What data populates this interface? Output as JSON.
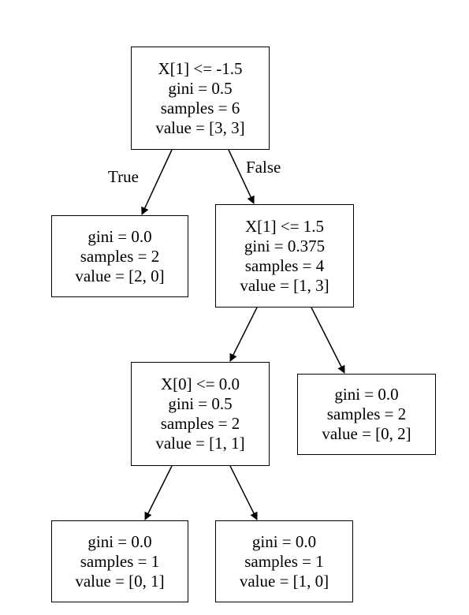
{
  "tree": {
    "root": {
      "condition": "X[1] <= -1.5",
      "gini": "gini = 0.5",
      "samples": "samples = 6",
      "value": "value = [3, 3]"
    },
    "left_leaf": {
      "gini": "gini = 0.0",
      "samples": "samples = 2",
      "value": "value = [2, 0]"
    },
    "right_split": {
      "condition": "X[1] <= 1.5",
      "gini": "gini = 0.375",
      "samples": "samples = 4",
      "value": "value = [1, 3]"
    },
    "mid_split": {
      "condition": "X[0] <= 0.0",
      "gini": "gini = 0.5",
      "samples": "samples = 2",
      "value": "value = [1, 1]"
    },
    "right_leaf": {
      "gini": "gini = 0.0",
      "samples": "samples = 2",
      "value": "value = [0, 2]"
    },
    "bottom_left_leaf": {
      "gini": "gini = 0.0",
      "samples": "samples = 1",
      "value": "value = [0, 1]"
    },
    "bottom_right_leaf": {
      "gini": "gini = 0.0",
      "samples": "samples = 1",
      "value": "value = [1, 0]"
    }
  },
  "edge_labels": {
    "true_label": "True",
    "false_label": "False"
  }
}
